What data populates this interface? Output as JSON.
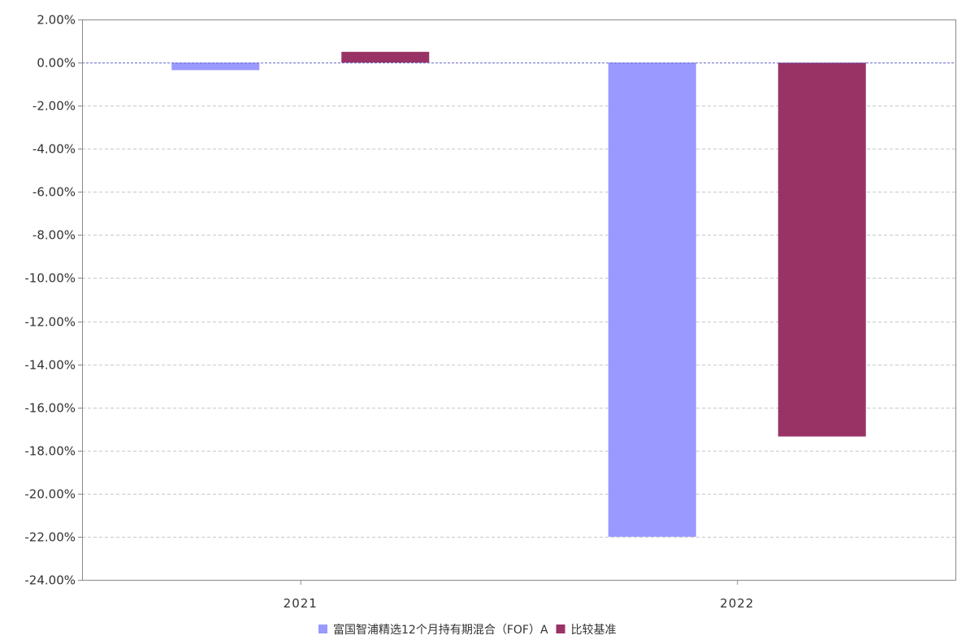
{
  "chart_data": {
    "type": "bar",
    "categories": [
      "2021",
      "2022"
    ],
    "series": [
      {
        "name": "富国智浦精选12个月持有期混合（FOF）A",
        "values": [
          -0.35,
          -22.0
        ],
        "color": "#9999ff"
      },
      {
        "name": "比较基准",
        "values": [
          0.5,
          -17.35
        ],
        "color": "#993366"
      }
    ],
    "yticks": [
      "2.00%",
      "0.00%",
      "-2.00%",
      "-4.00%",
      "-6.00%",
      "-8.00%",
      "-10.00%",
      "-12.00%",
      "-14.00%",
      "-16.00%",
      "-18.00%",
      "-20.00%",
      "-22.00%",
      "-24.00%"
    ],
    "ylim": [
      -24,
      2
    ],
    "y_unit": "%",
    "grid": true,
    "grid_color": "#c8c8c8",
    "zero_line_color": "#6b6bcf",
    "legend_position": "bottom-center"
  }
}
